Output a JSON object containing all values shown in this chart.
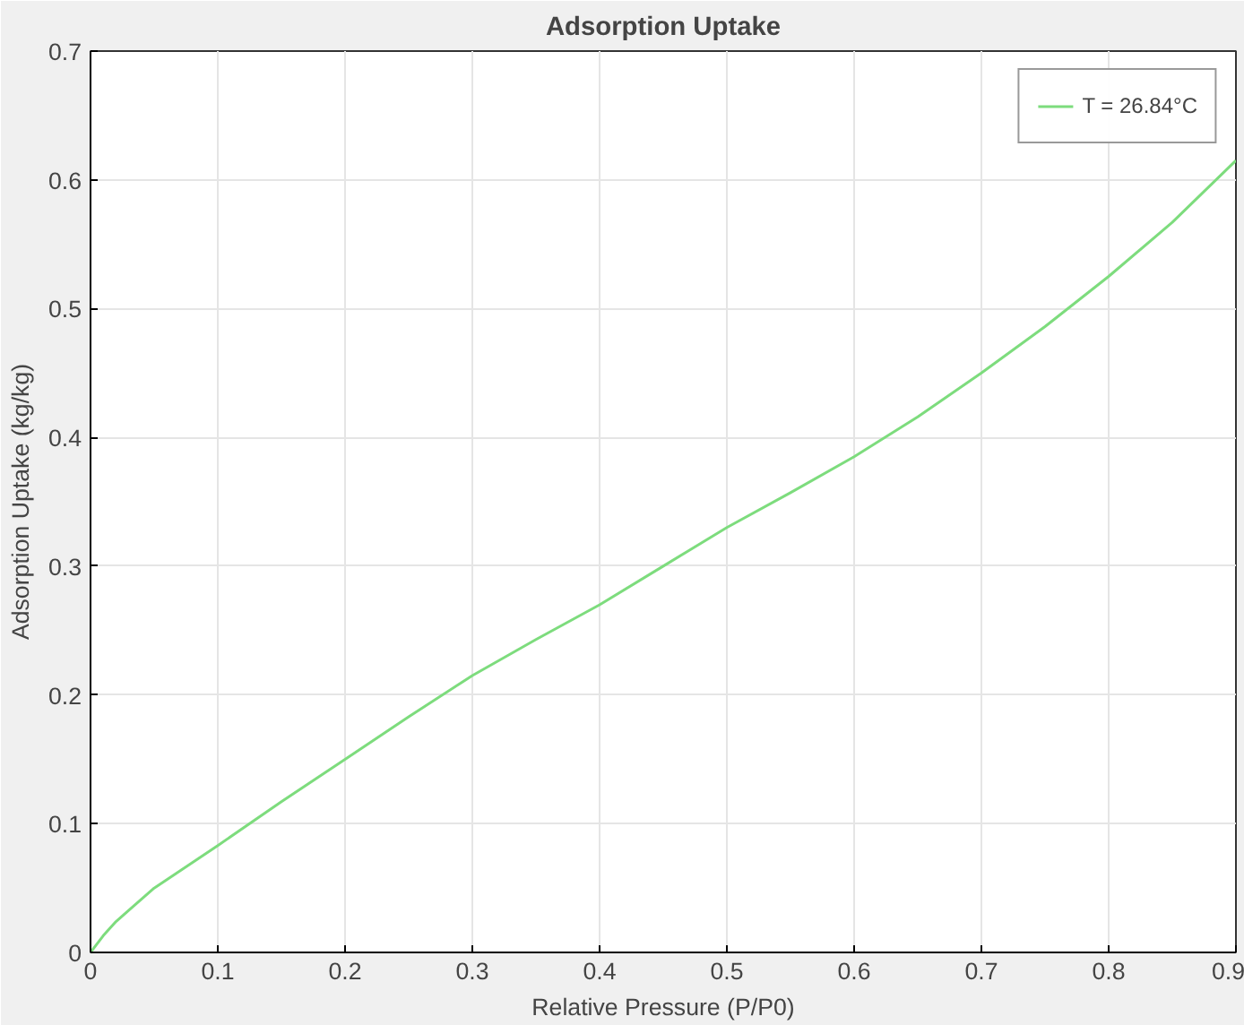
{
  "chart_data": {
    "type": "line",
    "title": "Adsorption Uptake",
    "xlabel": "Relative Pressure (P/P0)",
    "ylabel": "Adsorption Uptake (kg/kg)",
    "x": [
      0,
      0.01,
      0.02,
      0.05,
      0.1,
      0.15,
      0.2,
      0.25,
      0.3,
      0.35,
      0.4,
      0.45,
      0.5,
      0.55,
      0.6,
      0.65,
      0.7,
      0.75,
      0.8,
      0.85,
      0.9
    ],
    "series": [
      {
        "name": "T = 26.84°C",
        "color": "#7ddc7d",
        "values": [
          0,
          0.013,
          0.024,
          0.05,
          0.083,
          0.117,
          0.15,
          0.183,
          0.215,
          0.243,
          0.27,
          0.3,
          0.33,
          0.357,
          0.385,
          0.416,
          0.45,
          0.486,
          0.525,
          0.567,
          0.615
        ]
      }
    ],
    "xlim": [
      0,
      0.9
    ],
    "ylim": [
      0,
      0.7
    ],
    "xticks": [
      0,
      0.1,
      0.2,
      0.3,
      0.4,
      0.5,
      0.6,
      0.7,
      0.8,
      0.9
    ],
    "yticks": [
      0,
      0.1,
      0.2,
      0.3,
      0.4,
      0.5,
      0.6,
      0.7
    ],
    "grid": true,
    "legend": "top right",
    "line_style": "solid",
    "marker": "none"
  }
}
